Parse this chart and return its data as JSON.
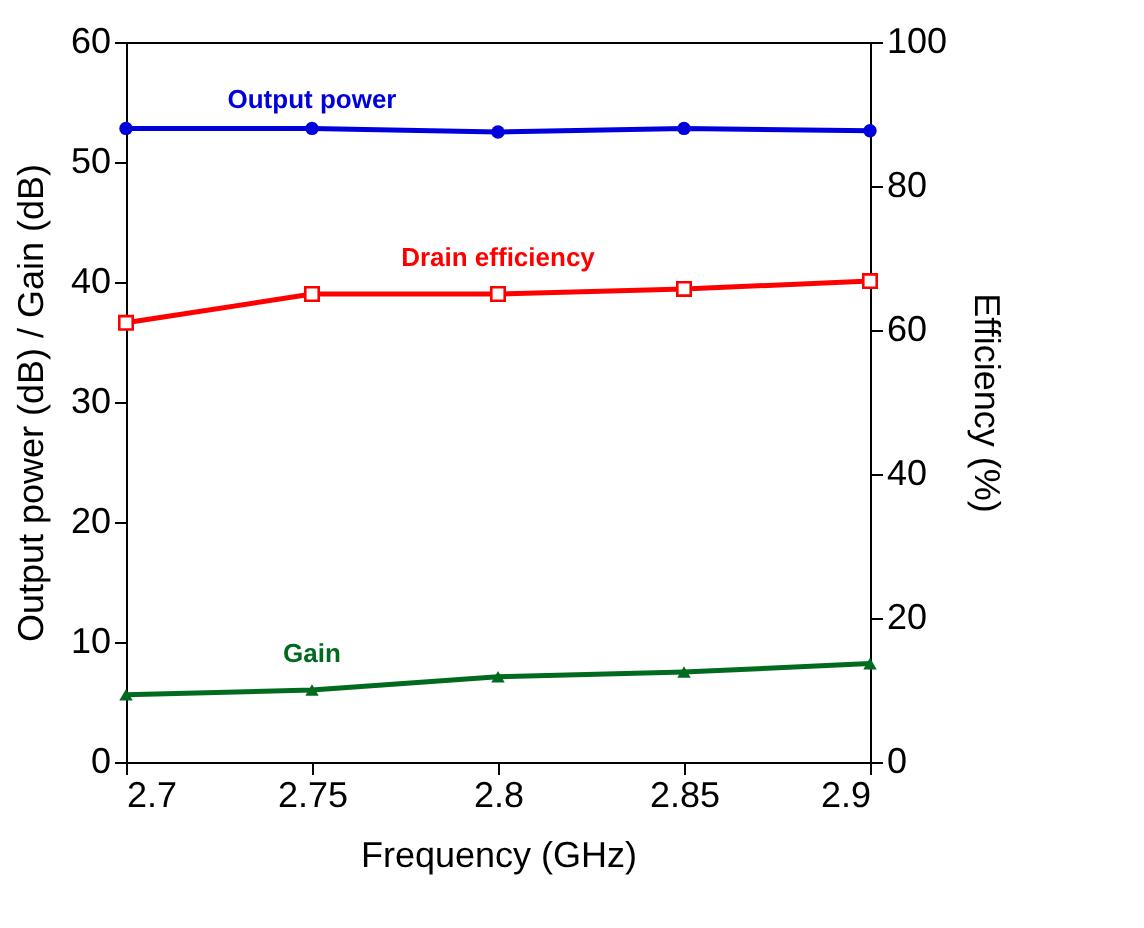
{
  "chart_data": {
    "type": "line",
    "xlabel": "Frequency (GHz)",
    "ylabel": "Output power (dB) / Gain (dB)",
    "y2label": "Efficiency (%)",
    "x": [
      2.7,
      2.75,
      2.8,
      2.85,
      2.9
    ],
    "series": [
      {
        "name": "Output power",
        "color": "#0000dd",
        "marker": "circle",
        "values": [
          52.8,
          52.8,
          52.5,
          52.8,
          52.6
        ]
      },
      {
        "name": "Drain efficiency",
        "color": "#ff0000",
        "marker": "square",
        "axis": "y2",
        "values": [
          61,
          65,
          65,
          65.7,
          66.8
        ]
      },
      {
        "name": "Gain",
        "color": "#006b1e",
        "marker": "triangle",
        "values": [
          5.6,
          6.0,
          7.1,
          7.5,
          8.2
        ]
      }
    ],
    "xlim": [
      2.7,
      2.9
    ],
    "xticks": [
      2.7,
      2.75,
      2.8,
      2.85,
      2.9
    ],
    "ylim": [
      0,
      60
    ],
    "yticks": [
      0,
      10,
      20,
      30,
      40,
      50,
      60
    ],
    "y2lim": [
      0,
      100
    ],
    "y2ticks": [
      0,
      20,
      40,
      60,
      80,
      100
    ],
    "grid": false
  }
}
